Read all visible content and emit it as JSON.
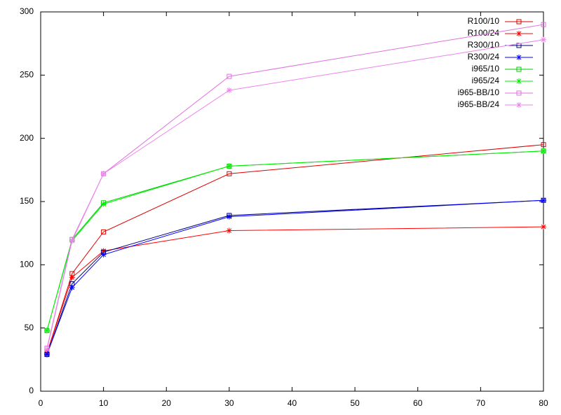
{
  "chart_data": {
    "type": "line",
    "x": [
      1,
      5,
      10,
      30,
      80
    ],
    "xlim": [
      0,
      80
    ],
    "xticks": [
      0,
      10,
      20,
      30,
      40,
      50,
      60,
      70,
      80
    ],
    "ylim": [
      0,
      300
    ],
    "yticks": [
      0,
      50,
      100,
      150,
      200,
      250,
      300
    ],
    "grid": false,
    "legend": "top-right",
    "series": [
      {
        "name": "R100/10",
        "color": "#dd0000",
        "marker": "square",
        "values": [
          30,
          93,
          126,
          172,
          195
        ]
      },
      {
        "name": "R100/24",
        "color": "#ff0000",
        "marker": "star",
        "values": [
          30,
          90,
          111,
          127,
          130
        ]
      },
      {
        "name": "R300/10",
        "color": "#000080",
        "marker": "square",
        "values": [
          29,
          85,
          110,
          139,
          151
        ]
      },
      {
        "name": "R300/24",
        "color": "#0000ff",
        "marker": "star",
        "values": [
          29,
          82,
          108,
          138,
          151
        ]
      },
      {
        "name": "i965/10",
        "color": "#00cc00",
        "marker": "square",
        "values": [
          48,
          120,
          149,
          178,
          190
        ]
      },
      {
        "name": "i965/24",
        "color": "#00ee00",
        "marker": "star",
        "values": [
          48,
          119,
          148,
          178,
          190
        ]
      },
      {
        "name": "i965-BB/10",
        "color": "#e070e0",
        "marker": "square",
        "values": [
          34,
          120,
          172,
          249,
          290
        ]
      },
      {
        "name": "i965-BB/24",
        "color": "#ee82ee",
        "marker": "star",
        "values": [
          33,
          119,
          172,
          238,
          278
        ]
      }
    ]
  }
}
